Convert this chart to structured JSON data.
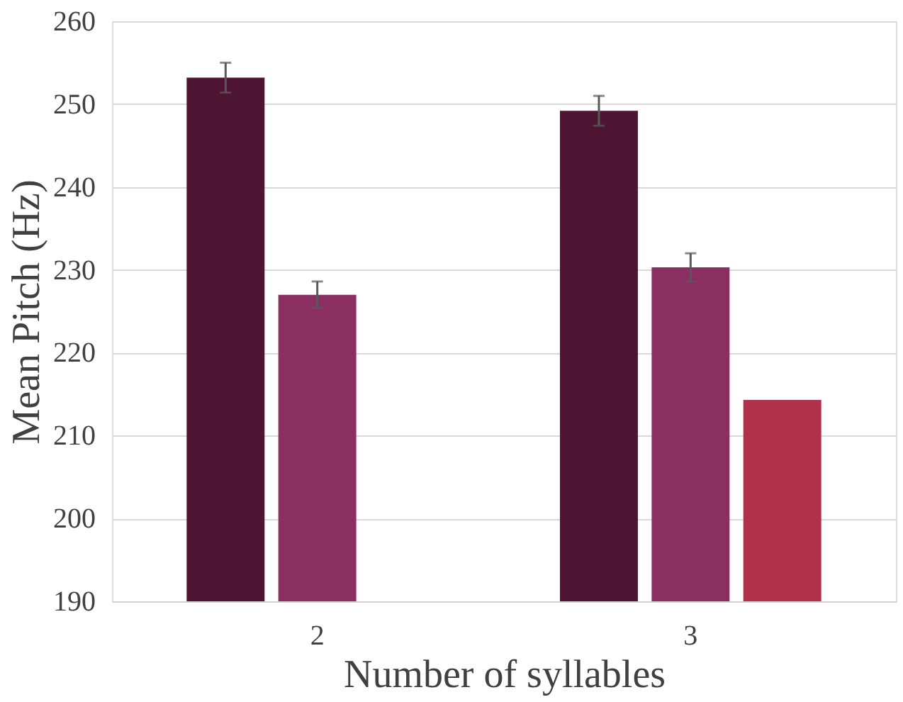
{
  "chart_data": {
    "type": "bar",
    "xlabel": "Number of syllables",
    "ylabel": "Mean Pitch (Hz)",
    "categories": [
      "2",
      "3"
    ],
    "series": [
      {
        "color": "#4e1532",
        "values": [
          253.2,
          249.2
        ],
        "errors": [
          1.8,
          1.8
        ]
      },
      {
        "color": "#8b2f62",
        "values": [
          227.0,
          230.3
        ],
        "errors": [
          1.6,
          1.7
        ]
      },
      {
        "color": "#b0324a",
        "values": [
          null,
          214.3
        ],
        "errors": [
          null,
          null
        ]
      }
    ],
    "ylim": [
      190,
      260
    ],
    "yticks": [
      190,
      200,
      210,
      220,
      230,
      240,
      250,
      260
    ],
    "grid": "y",
    "legend": false
  }
}
